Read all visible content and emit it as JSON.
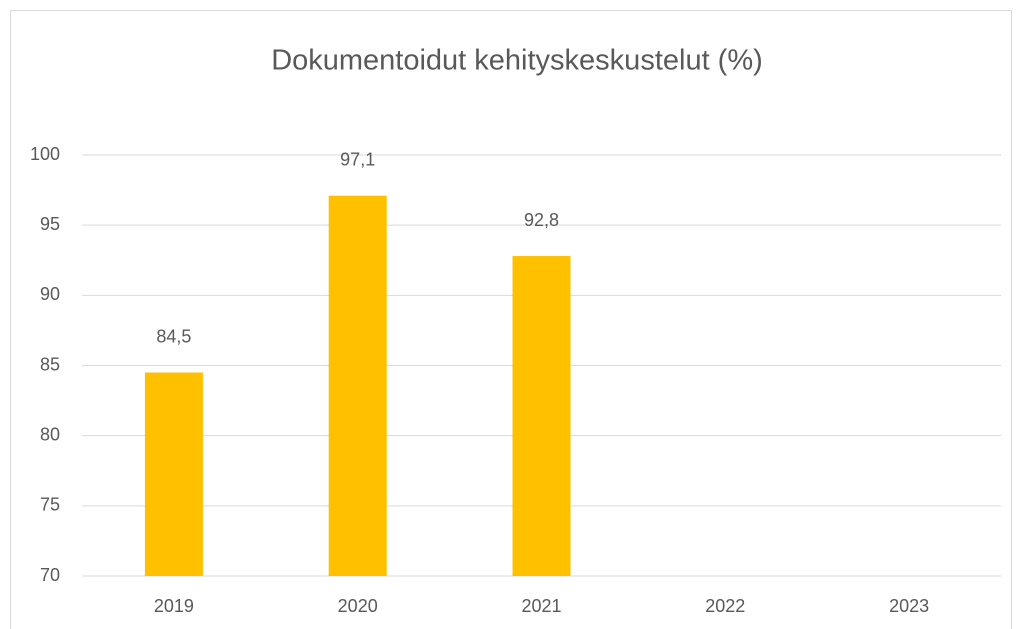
{
  "chart_data": {
    "type": "bar",
    "title": "Dokumentoidut kehityskeskustelut (%)",
    "categories": [
      "2019",
      "2020",
      "2021",
      "2022",
      "2023"
    ],
    "values": [
      84.5,
      97.1,
      92.8,
      null,
      null
    ],
    "value_labels": [
      "84,5",
      "97,1",
      "92,8",
      null,
      null
    ],
    "color": "#FFC000",
    "ylim": [
      70,
      100
    ],
    "yticks": [
      70,
      75,
      80,
      85,
      90,
      95,
      100
    ],
    "grid": true
  }
}
